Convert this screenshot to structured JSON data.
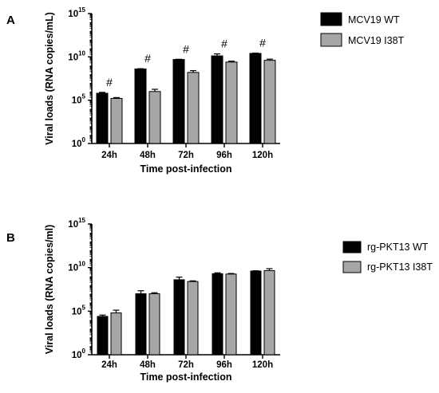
{
  "chart_data": [
    {
      "panel": "A",
      "type": "bar",
      "xlabel": "Time post-infection",
      "ylabel": "Viral loads (RNA copies/mL)",
      "yscale": "log",
      "ylim": [
        1,
        1000000000000000.0
      ],
      "yticks": [
        {
          "base": "10",
          "exp": "0"
        },
        {
          "base": "10",
          "exp": "5"
        },
        {
          "base": "10",
          "exp": "10"
        },
        {
          "base": "10",
          "exp": "15"
        }
      ],
      "categories": [
        "24h",
        "48h",
        "72h",
        "96h",
        "120h"
      ],
      "series": [
        {
          "name": "MCV19 WT",
          "color": "#000000",
          "values": [
            630000.0,
            400000000.0,
            5000000000.0,
            13000000000.0,
            25000000000.0
          ],
          "errors_upper": [
            800000.0,
            430000000.0,
            5300000000.0,
            22000000000.0,
            27000000000.0
          ]
        },
        {
          "name": "MCV19 I38T",
          "color": "#a6a6a6",
          "values": [
            160000.0,
            1000000.0,
            160000000.0,
            2500000000.0,
            4000000000.0
          ],
          "errors_upper": [
            200000.0,
            1800000.0,
            260000000.0,
            3200000000.0,
            5500000000.0
          ]
        }
      ],
      "annotations": [
        "#",
        "#",
        "#",
        "#",
        "#"
      ],
      "legend_position": "top-right"
    },
    {
      "panel": "B",
      "type": "bar",
      "xlabel": "Time post-infection",
      "ylabel": "Viral loads (RNA copies/ml)",
      "yscale": "log",
      "ylim": [
        1,
        1000000000000000.0
      ],
      "yticks": [
        {
          "base": "10",
          "exp": "0"
        },
        {
          "base": "10",
          "exp": "5"
        },
        {
          "base": "10",
          "exp": "10"
        },
        {
          "base": "10",
          "exp": "15"
        }
      ],
      "categories": [
        "24h",
        "48h",
        "72h",
        "96h",
        "120h"
      ],
      "series": [
        {
          "name": "rg-PKT13 WT",
          "color": "#000000",
          "values": [
            25000.0,
            10000000.0,
            400000000.0,
            2000000000.0,
            4000000000.0
          ],
          "errors_upper": [
            36000.0,
            22000000.0,
            800000000.0,
            2500000000.0,
            4300000000.0
          ]
        },
        {
          "name": "rg-PKT13 I38T",
          "color": "#a6a6a6",
          "values": [
            63000.0,
            10000000.0,
            250000000.0,
            1800000000.0,
            4500000000.0
          ],
          "errors_upper": [
            130000.0,
            13000000.0,
            300000000.0,
            2100000000.0,
            7500000000.0
          ]
        }
      ],
      "annotations": [],
      "legend_position": "top-right"
    }
  ]
}
